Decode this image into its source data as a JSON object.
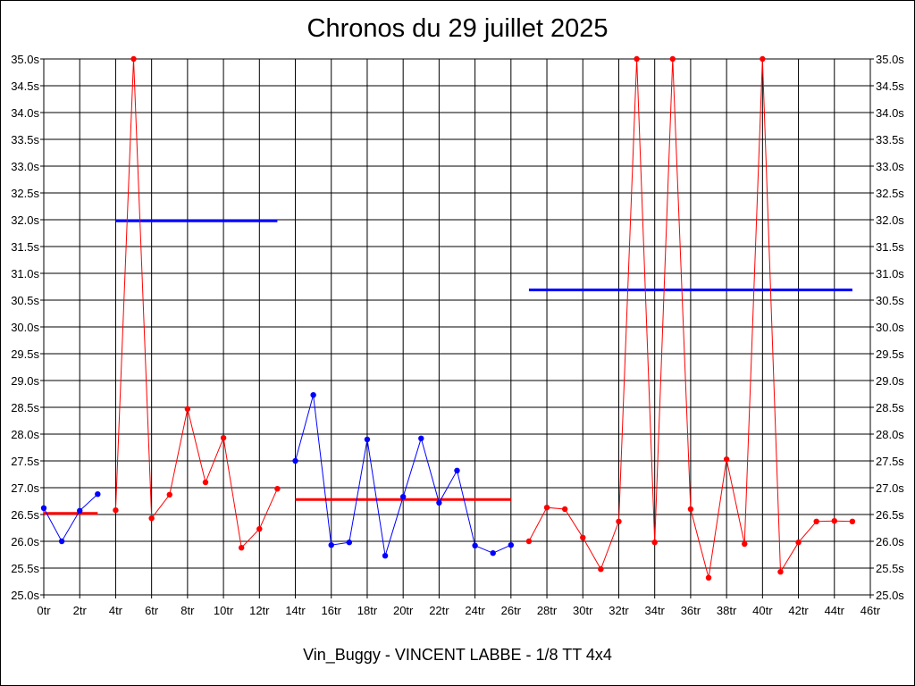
{
  "chart_data": {
    "type": "line",
    "title": "Chronos du 29 juillet 2025",
    "subtitle": "Vin_Buggy - VINCENT LABBE - 1/8 TT 4x4",
    "xlabel": "",
    "ylabel": "",
    "xlim": [
      0,
      46
    ],
    "ylim": [
      25.0,
      35.0
    ],
    "grid": true,
    "y_ticks": [
      "25.0s",
      "25.5s",
      "26.0s",
      "26.5s",
      "27.0s",
      "27.5s",
      "28.0s",
      "28.5s",
      "29.0s",
      "29.5s",
      "30.0s",
      "30.5s",
      "31.0s",
      "31.5s",
      "32.0s",
      "32.5s",
      "33.0s",
      "33.5s",
      "34.0s",
      "34.5s",
      "35.0s"
    ],
    "x_ticks": [
      "0tr",
      "2tr",
      "4tr",
      "6tr",
      "8tr",
      "10tr",
      "12tr",
      "14tr",
      "16tr",
      "18tr",
      "20tr",
      "22tr",
      "24tr",
      "26tr",
      "28tr",
      "30tr",
      "32tr",
      "34tr",
      "36tr",
      "38tr",
      "40tr",
      "42tr",
      "44tr",
      "46tr"
    ],
    "series": [
      {
        "color": "#0000ff",
        "points": [
          [
            0,
            26.62
          ],
          [
            1,
            26.0
          ],
          [
            2,
            26.57
          ],
          [
            3,
            26.88
          ]
        ]
      },
      {
        "color": "#ff0000",
        "points": [
          [
            4,
            26.58
          ],
          [
            5,
            35.0
          ],
          [
            6,
            26.43
          ],
          [
            7,
            26.87
          ],
          [
            8,
            28.47
          ],
          [
            9,
            27.1
          ],
          [
            10,
            27.93
          ],
          [
            11,
            25.88
          ],
          [
            12,
            26.23
          ],
          [
            13,
            26.98
          ]
        ]
      },
      {
        "color": "#0000ff",
        "points": [
          [
            14,
            27.5
          ],
          [
            15,
            28.73
          ],
          [
            16,
            25.93
          ],
          [
            17,
            25.98
          ],
          [
            18,
            27.9
          ],
          [
            19,
            25.73
          ],
          [
            20,
            26.83
          ],
          [
            21,
            27.92
          ],
          [
            22,
            26.72
          ],
          [
            23,
            27.32
          ],
          [
            24,
            25.92
          ],
          [
            25,
            25.78
          ],
          [
            26,
            25.93
          ]
        ]
      },
      {
        "color": "#ff0000",
        "points": [
          [
            27,
            26.0
          ],
          [
            28,
            26.63
          ],
          [
            29,
            26.6
          ],
          [
            30,
            26.07
          ],
          [
            31,
            25.48
          ],
          [
            32,
            26.37
          ],
          [
            33,
            35.0
          ],
          [
            34,
            25.98
          ],
          [
            35,
            35.0
          ],
          [
            36,
            26.6
          ],
          [
            37,
            25.32
          ],
          [
            38,
            27.53
          ],
          [
            39,
            25.95
          ],
          [
            40,
            35.0
          ],
          [
            41,
            25.43
          ],
          [
            42,
            25.98
          ],
          [
            43,
            26.37
          ],
          [
            44,
            26.38
          ],
          [
            45,
            26.37
          ]
        ]
      }
    ],
    "averages": [
      {
        "color": "#ff0000",
        "x_start": 0,
        "x_end": 3,
        "value": 26.52
      },
      {
        "color": "#0000ff",
        "x_start": 4,
        "x_end": 13,
        "value": 31.98
      },
      {
        "color": "#ff0000",
        "x_start": 14,
        "x_end": 26,
        "value": 26.78
      },
      {
        "color": "#0000ff",
        "x_start": 27,
        "x_end": 45,
        "value": 30.69
      }
    ]
  }
}
